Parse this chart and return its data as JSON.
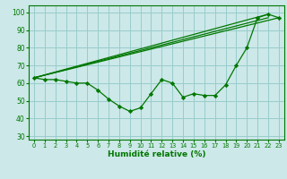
{
  "xlabel": "Humidité relative (%)",
  "bg_color": "#cce8e8",
  "grid_color": "#99cccc",
  "line_color": "#007700",
  "xlim": [
    -0.5,
    23.5
  ],
  "ylim": [
    28,
    104
  ],
  "yticks": [
    30,
    40,
    50,
    60,
    70,
    80,
    90,
    100
  ],
  "xticks": [
    0,
    1,
    2,
    3,
    4,
    5,
    6,
    7,
    8,
    9,
    10,
    11,
    12,
    13,
    14,
    15,
    16,
    17,
    18,
    19,
    20,
    21,
    22,
    23
  ],
  "line_main": [
    63,
    62,
    62,
    61,
    60,
    60,
    56,
    51,
    47,
    44,
    46,
    54,
    62,
    60,
    52,
    54,
    53,
    53,
    59,
    70,
    80,
    97,
    99,
    97
  ],
  "straight_lines": [
    {
      "x": [
        0,
        22
      ],
      "y": [
        63,
        97
      ]
    },
    {
      "x": [
        0,
        22
      ],
      "y": [
        63,
        99
      ]
    },
    {
      "x": [
        0,
        23
      ],
      "y": [
        63,
        97
      ]
    }
  ]
}
